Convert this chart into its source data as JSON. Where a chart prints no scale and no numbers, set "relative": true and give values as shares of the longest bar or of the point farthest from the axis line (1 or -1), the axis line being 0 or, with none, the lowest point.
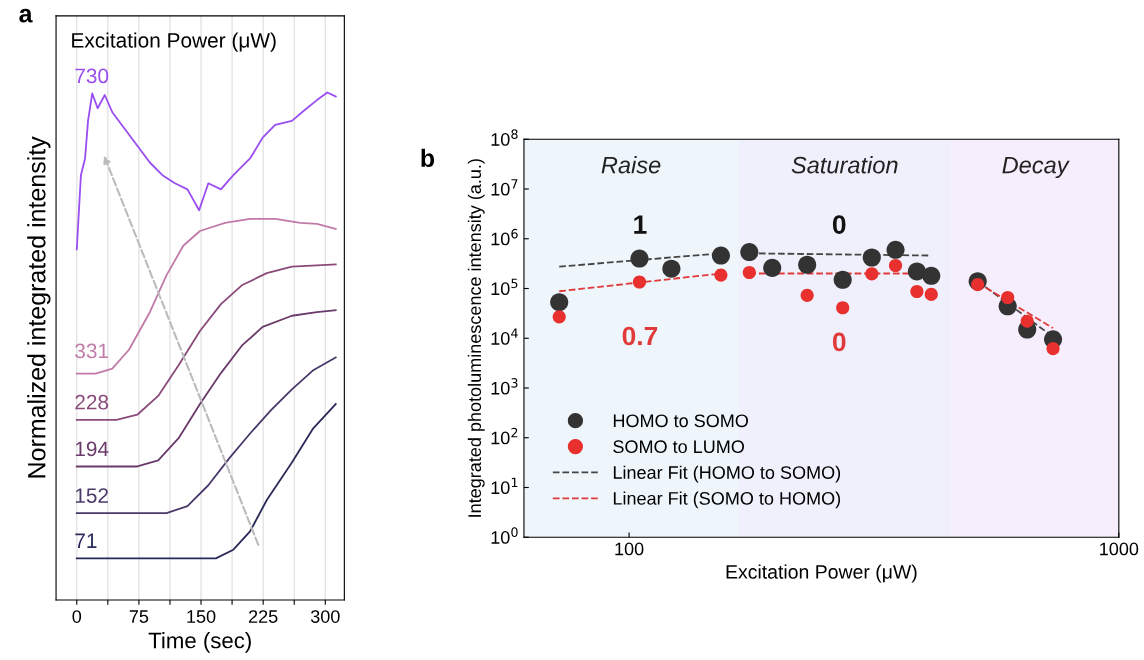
{
  "chart_data": [
    {
      "type": "line",
      "title": "a",
      "legend_title": "Excitation Power (μW)",
      "xlabel": "Time (sec)",
      "ylabel": "Normalized integrated intensity",
      "relative": true,
      "xlim": [
        -25,
        323
      ],
      "xticks": [
        0,
        {
          "value": 37.5,
          "label": null
        },
        75,
        {
          "value": 112.5,
          "label": null
        },
        150,
        {
          "value": 187.5,
          "label": null
        },
        225,
        {
          "value": 262.5,
          "label": null
        },
        300
      ],
      "grid": "x",
      "tick_labels": "x",
      "line_style": "solid",
      "series": [
        {
          "name": "730",
          "color": "#9a4df0",
          "x": [
            0,
            5,
            10,
            13.6,
            18.7,
            25.2,
            33.8,
            42.9,
            58,
            73.1,
            88.2,
            103.4,
            118.5,
            133.6,
            147.7,
            158.8,
            174,
            189,
            209.2,
            224.4,
            239.5,
            259.7,
            274.8,
            289.9,
            302.5,
            312.6
          ],
          "values": [
            0.691,
            0.837,
            0.87,
            0.944,
            0.998,
            0.969,
            0.995,
            0.961,
            0.928,
            0.895,
            0.862,
            0.837,
            0.821,
            0.809,
            0.768,
            0.821,
            0.809,
            0.837,
            0.87,
            0.911,
            0.936,
            0.944,
            0.965,
            0.985,
            1.0,
            0.992
          ]
        },
        {
          "name": "331",
          "color": "#c07aa8",
          "x": [
            0,
            22.7,
            42.9,
            63,
            88.2,
            108.4,
            128.6,
            148.7,
            179,
            209.2,
            239.5,
            269.8,
            289.9,
            312.6
          ],
          "values": [
            0.446,
            0.446,
            0.456,
            0.493,
            0.567,
            0.64,
            0.698,
            0.727,
            0.743,
            0.751,
            0.751,
            0.743,
            0.741,
            0.731
          ]
        },
        {
          "name": "228",
          "color": "#8a4a7a",
          "x": [
            0,
            47.9,
            73.1,
            98.3,
            123.5,
            148.7,
            174,
            199.2,
            229.4,
            259.7,
            312.6
          ],
          "values": [
            0.355,
            0.355,
            0.365,
            0.402,
            0.464,
            0.53,
            0.583,
            0.62,
            0.644,
            0.657,
            0.661
          ]
        },
        {
          "name": "194",
          "color": "#6a3a6a",
          "x": [
            0,
            73.1,
            98.3,
            123.5,
            148.7,
            174,
            199.2,
            224.4,
            259.7,
            289.9,
            312.6
          ],
          "values": [
            0.263,
            0.263,
            0.275,
            0.32,
            0.386,
            0.447,
            0.501,
            0.538,
            0.56,
            0.567,
            0.571
          ]
        },
        {
          "name": "152",
          "color": "#4a3a6a",
          "x": [
            0,
            108.4,
            133.6,
            158.8,
            184,
            209.2,
            234.5,
            259.7,
            284.9,
            312.6
          ],
          "values": [
            0.171,
            0.171,
            0.185,
            0.226,
            0.279,
            0.328,
            0.374,
            0.415,
            0.452,
            0.478
          ]
        },
        {
          "name": "71",
          "color": "#2a2a5a",
          "x": [
            0,
            167.9,
            189,
            209.2,
            229.4,
            259.7,
            284.9,
            312.6
          ],
          "values": [
            0.082,
            0.082,
            0.099,
            0.135,
            0.197,
            0.271,
            0.337,
            0.386
          ]
        }
      ]
    },
    {
      "type": "scatter",
      "title": "b",
      "xlabel": "Excitation Power (μW)",
      "ylabel": "Integrated photoluminescence intensity (a.u.)",
      "log": "xy",
      "xlim": [
        61,
        1000
      ],
      "xticks": [
        100,
        1000
      ],
      "ylim": [
        1,
        100000000
      ],
      "yticks": [
        {
          "value": 1,
          "label": "10$^{0}$"
        },
        {
          "value": 10,
          "label": "10$^{1}$"
        },
        {
          "value": 100,
          "label": "10$^{2}$"
        },
        {
          "value": 1000,
          "label": "10$^{3}$"
        },
        {
          "value": 10000,
          "label": "10$^{4}$"
        },
        {
          "value": 100000,
          "label": "10$^{5}$"
        },
        {
          "value": 1000000,
          "label": "10$^{6}$"
        },
        {
          "value": 10000000,
          "label": "10$^{7}$"
        },
        {
          "value": 100000000,
          "label": "10$^{8}$"
        }
      ],
      "marker": "circle",
      "legend": "bottom left",
      "grid": false,
      "x": [
        72,
        105,
        122,
        154,
        176,
        196,
        231,
        273,
        313,
        350,
        387,
        414,
        515,
        593,
        650,
        734
      ],
      "series": [
        {
          "name": "HOMO to SOMO",
          "color": "#333333",
          "values": [
            53000,
            400000,
            250000,
            460000,
            540000,
            260000,
            300000,
            150000,
            420000,
            600000,
            220000,
            180000,
            140000,
            44000,
            15000,
            9500
          ]
        },
        {
          "name": "SOMO to LUMO",
          "color": "#e8302e",
          "values": [
            27000,
            135000,
            null,
            186000,
            210000,
            null,
            73000,
            41000,
            197000,
            290000,
            87000,
            76000,
            120000,
            66000,
            22000,
            6200
          ]
        },
        {
          "name": "Linear Fit (HOMO to SOMO)",
          "type": "line",
          "line_style": "dashed",
          "marker": "none",
          "color": "#444444",
          "x": [
            72,
            154,
            165,
            176,
            410,
            460,
            515,
            734
          ],
          "values": [
            275000,
            510000,
            null,
            510000,
            460000,
            null,
            140000,
            10700
          ]
        },
        {
          "name": "Linear Fit (SOMO to HOMO)",
          "type": "line",
          "line_style": "dashed",
          "marker": "none",
          "color": "#e03a3a",
          "x": [
            72,
            154,
            165,
            176,
            410,
            460,
            515,
            734
          ],
          "values": [
            88000,
            200000,
            null,
            200000,
            200000,
            null,
            130000,
            16000
          ]
        }
      ],
      "bands": [
        {
          "axis": "x",
          "from": 61,
          "to": 167,
          "label": "Raise",
          "color": "#eef6fc"
        },
        {
          "axis": "x",
          "from": 167,
          "to": 455,
          "label": "Saturation",
          "color": "#f0f0fc"
        },
        {
          "axis": "x",
          "from": 455,
          "to": 1000,
          "label": "Decay",
          "color": "#f6eefc"
        }
      ],
      "annotations": [
        "1",
        "0",
        "0.7",
        "0"
      ]
    }
  ]
}
